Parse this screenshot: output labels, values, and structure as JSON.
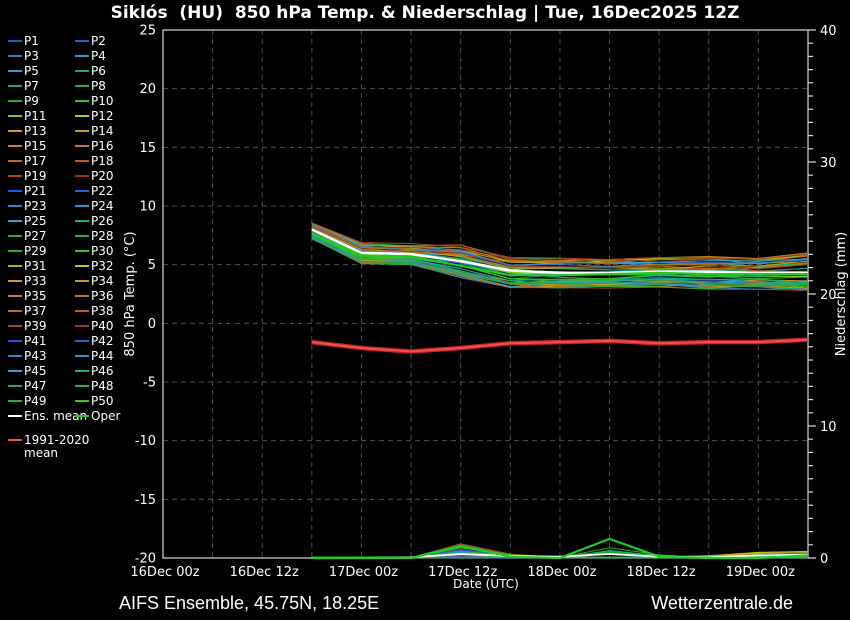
{
  "title": "Siklós  (HU)  850 hPa Temp. & Niederschlag | Tue, 16Dec2025 12Z",
  "footer": {
    "left": "AIFS Ensemble, 45.75N, 18.25E",
    "right": "Wetterzentrale.de"
  },
  "colors": {
    "background": "#000000",
    "frame": "#d8d8d8",
    "grid": "#4d4d4d",
    "text": "#ffffff",
    "ens_mean": "#ffffff",
    "oper": "#1fcc1f",
    "climate_outer": "#c62323",
    "climate_inner": "#f05050",
    "member_palette": [
      "#2b55d5",
      "#2e62d4",
      "#2f7fd0",
      "#2e93cf",
      "#29a6c9",
      "#16ab8a",
      "#18ab66",
      "#1db148",
      "#21af2c",
      "#3ec414",
      "#b5ad14",
      "#c9c01f",
      "#c2a318",
      "#c49b1d",
      "#c08420",
      "#c27c1e",
      "#c06d1d",
      "#bd5b1e",
      "#ab4521",
      "#9d3720"
    ]
  },
  "legend": {
    "members": [
      "P1",
      "P2",
      "P3",
      "P4",
      "P5",
      "P6",
      "P7",
      "P8",
      "P9",
      "P10",
      "P11",
      "P12",
      "P13",
      "P14",
      "P15",
      "P16",
      "P17",
      "P18",
      "P19",
      "P20",
      "P21",
      "P22",
      "P23",
      "P24",
      "P25",
      "P26",
      "P27",
      "P28",
      "P29",
      "P30",
      "P31",
      "P32",
      "P33",
      "P34",
      "P35",
      "P36",
      "P37",
      "P38",
      "P39",
      "P40",
      "P41",
      "P42",
      "P43",
      "P44",
      "P45",
      "P46",
      "P47",
      "P48",
      "P49",
      "P50"
    ],
    "ens_mean_label": "Ens. mean",
    "oper_label": "Oper",
    "climate_label_line1": "1991-2020",
    "climate_label_line2": "mean"
  },
  "chart_data": {
    "type": "line",
    "title": "Siklós (HU) 850 hPa Temp. & Niederschlag | Tue, 16Dec2025 12Z",
    "x_axis": {
      "label": "Date (UTC)",
      "tick_labels": [
        "16Dec 00z",
        "16Dec 12z",
        "17Dec 00z",
        "17Dec 12z",
        "18Dec 00z",
        "18Dec 12z",
        "19Dec 00z"
      ],
      "tick_hours": [
        0,
        12,
        24,
        36,
        48,
        60,
        72
      ],
      "range_hours": [
        0,
        78
      ],
      "grid_step_hours": 6
    },
    "y_left": {
      "label": "850 hPa Temp. (°C)",
      "min": -20,
      "max": 25,
      "tick_values": [
        25,
        20,
        15,
        10,
        5,
        0,
        -5,
        -10,
        -15,
        -20
      ],
      "tick_labels": [
        "25",
        "20",
        "15",
        "10",
        "5",
        "0",
        "-5",
        "-10",
        "-15",
        "-20"
      ],
      "grid_values": [
        20,
        15,
        10,
        5,
        0,
        -5,
        -10,
        -15
      ]
    },
    "y_right": {
      "label": "Niederschlag (mm)",
      "min": 0,
      "max": 40,
      "tick_values": [
        40,
        30,
        20,
        10,
        0
      ],
      "tick_labels": [
        "40",
        "30",
        "20",
        "10",
        "0"
      ],
      "minor_step": 1
    },
    "x_hours": [
      18,
      24,
      30,
      36,
      42,
      48,
      54,
      60,
      66,
      72,
      78
    ],
    "temp": {
      "ens_mean": [
        8.0,
        6.0,
        5.9,
        5.3,
        4.5,
        4.3,
        4.3,
        4.4,
        4.4,
        4.3,
        4.3
      ],
      "oper": [
        7.7,
        5.8,
        5.7,
        4.9,
        4.1,
        4.1,
        4.2,
        4.3,
        4.2,
        4.2,
        4.2
      ],
      "climate_mean": [
        -1.6,
        -2.1,
        -2.4,
        -2.1,
        -1.7,
        -1.6,
        -1.5,
        -1.7,
        -1.6,
        -1.6,
        -1.4
      ],
      "envelope_min": [
        7.2,
        5.1,
        5.0,
        3.9,
        2.9,
        3.0,
        3.0,
        3.1,
        2.9,
        2.9,
        2.8
      ],
      "envelope_max": [
        8.6,
        6.9,
        6.8,
        6.8,
        5.8,
        5.6,
        5.5,
        5.6,
        5.7,
        5.6,
        6.0
      ]
    },
    "precip": {
      "ens_mean": [
        0,
        0,
        0.05,
        0.3,
        0.15,
        0.1,
        0.3,
        0.1,
        0.05,
        0.2,
        0.25
      ],
      "oper": [
        0,
        0,
        0,
        0.9,
        0.1,
        0,
        1.45,
        0.1,
        0,
        0,
        0.2
      ],
      "envelope_max": [
        0.1,
        0.1,
        0.2,
        1.4,
        0.4,
        0.3,
        1.45,
        0.3,
        0.2,
        0.5,
        0.5
      ]
    }
  }
}
